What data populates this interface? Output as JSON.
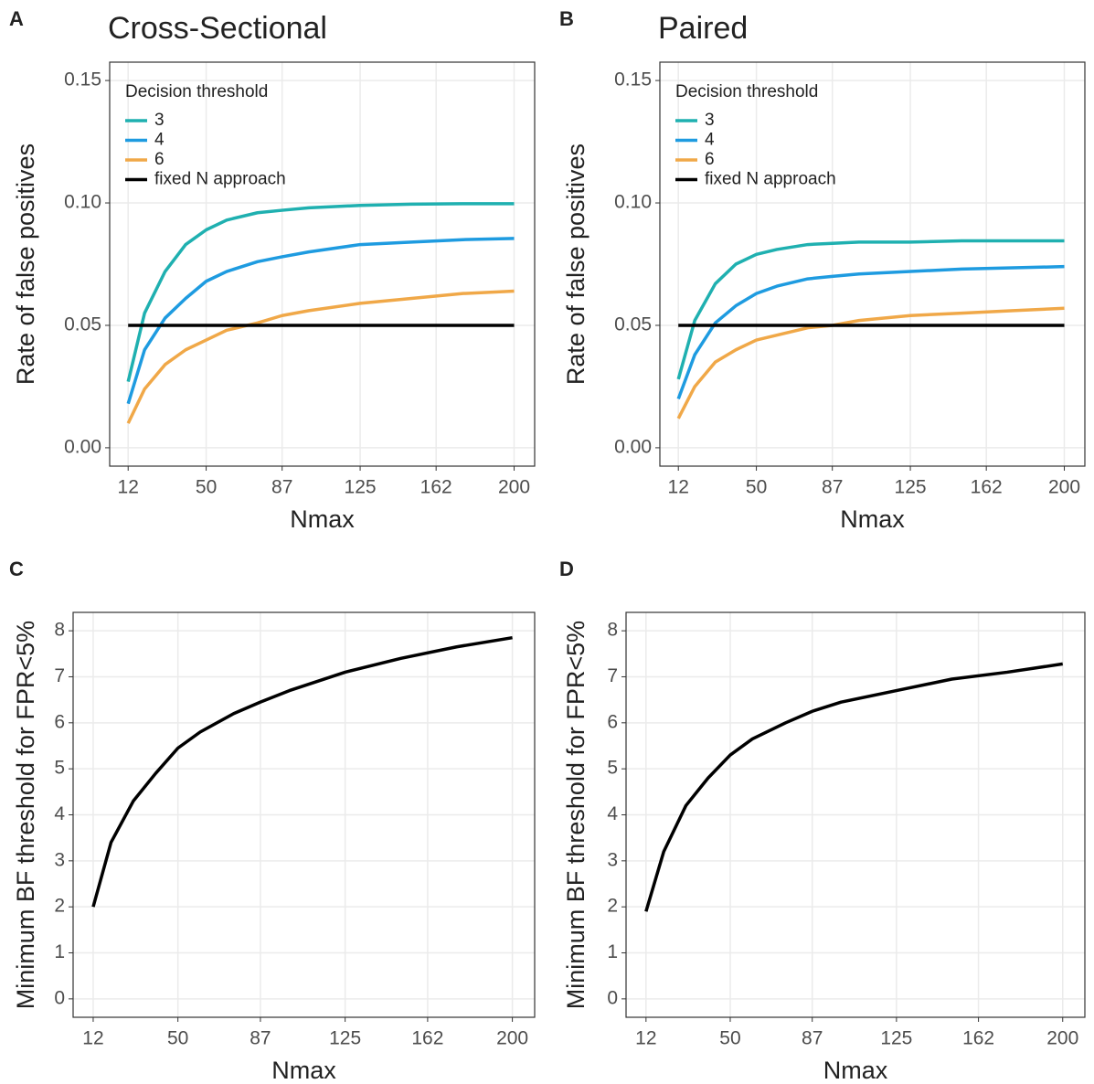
{
  "chart_data": [
    {
      "type": "line",
      "label": "A",
      "title": "Cross-Sectional",
      "xlabel": "Nmax",
      "ylabel": "Rate of false positives",
      "xlim": [
        3,
        210
      ],
      "xticks": [
        12,
        50,
        87,
        125,
        162,
        200
      ],
      "ylim": [
        -0.0075,
        0.1575
      ],
      "yticks": [
        {
          "value": 0,
          "label": "0.00"
        },
        {
          "value": 0.05,
          "label": "0.05"
        },
        {
          "value": 0.1,
          "label": "0.10"
        },
        {
          "value": 0.15,
          "label": "0.15"
        }
      ],
      "grid": true,
      "legend": "top-left",
      "legend_title": "Decision threshold",
      "series": [
        {
          "name": "3",
          "color": "#1fb0b0",
          "x": [
            12,
            20,
            30,
            40,
            50,
            60,
            75,
            87,
            100,
            125,
            150,
            175,
            200
          ],
          "values": [
            0.027,
            0.055,
            0.072,
            0.083,
            0.089,
            0.093,
            0.096,
            0.097,
            0.098,
            0.099,
            0.0995,
            0.0997,
            0.0997
          ]
        },
        {
          "name": "4",
          "color": "#1e9be0",
          "x": [
            12,
            20,
            30,
            40,
            50,
            60,
            75,
            87,
            100,
            125,
            150,
            175,
            200
          ],
          "values": [
            0.018,
            0.04,
            0.053,
            0.061,
            0.068,
            0.072,
            0.076,
            0.078,
            0.08,
            0.083,
            0.084,
            0.085,
            0.0855
          ]
        },
        {
          "name": "6",
          "color": "#f0a848",
          "x": [
            12,
            20,
            30,
            40,
            50,
            60,
            75,
            87,
            100,
            125,
            150,
            175,
            200
          ],
          "values": [
            0.01,
            0.024,
            0.034,
            0.04,
            0.044,
            0.048,
            0.051,
            0.054,
            0.056,
            0.059,
            0.061,
            0.063,
            0.064
          ]
        },
        {
          "name": "fixed N approach",
          "color": "#000000",
          "x": [
            12,
            200
          ],
          "values": [
            0.05,
            0.05
          ]
        }
      ]
    },
    {
      "type": "line",
      "label": "B",
      "title": "Paired",
      "xlabel": "Nmax",
      "ylabel": "Rate of false positives",
      "xlim": [
        3,
        210
      ],
      "xticks": [
        12,
        50,
        87,
        125,
        162,
        200
      ],
      "ylim": [
        -0.0075,
        0.1575
      ],
      "yticks": [
        {
          "value": 0,
          "label": "0.00"
        },
        {
          "value": 0.05,
          "label": "0.05"
        },
        {
          "value": 0.1,
          "label": "0.10"
        },
        {
          "value": 0.15,
          "label": "0.15"
        }
      ],
      "grid": true,
      "legend": "top-left",
      "legend_title": "Decision threshold",
      "series": [
        {
          "name": "3",
          "color": "#1fb0b0",
          "x": [
            12,
            20,
            30,
            40,
            50,
            60,
            75,
            87,
            100,
            125,
            150,
            175,
            200
          ],
          "values": [
            0.028,
            0.052,
            0.067,
            0.075,
            0.079,
            0.081,
            0.083,
            0.0835,
            0.084,
            0.084,
            0.0845,
            0.0845,
            0.0845
          ]
        },
        {
          "name": "4",
          "color": "#1e9be0",
          "x": [
            12,
            20,
            30,
            40,
            50,
            60,
            75,
            87,
            100,
            125,
            150,
            175,
            200
          ],
          "values": [
            0.02,
            0.038,
            0.051,
            0.058,
            0.063,
            0.066,
            0.069,
            0.07,
            0.071,
            0.072,
            0.073,
            0.0735,
            0.074
          ]
        },
        {
          "name": "6",
          "color": "#f0a848",
          "x": [
            12,
            20,
            30,
            40,
            50,
            60,
            75,
            87,
            100,
            125,
            150,
            175,
            200
          ],
          "values": [
            0.012,
            0.025,
            0.035,
            0.04,
            0.044,
            0.046,
            0.049,
            0.05,
            0.052,
            0.054,
            0.055,
            0.056,
            0.057
          ]
        },
        {
          "name": "fixed N approach",
          "color": "#000000",
          "x": [
            12,
            200
          ],
          "values": [
            0.05,
            0.05
          ]
        }
      ]
    },
    {
      "type": "line",
      "label": "C",
      "xlabel": "Nmax",
      "ylabel": "Minimum BF threshold for FPR<5%",
      "xlim": [
        3,
        210
      ],
      "xticks": [
        12,
        50,
        87,
        125,
        162,
        200
      ],
      "ylim": [
        -0.4,
        8.4
      ],
      "yticks": [
        0,
        1,
        2,
        3,
        4,
        5,
        6,
        7,
        8
      ],
      "grid": true,
      "color": "#000000",
      "x": [
        12,
        20,
        30,
        40,
        50,
        60,
        75,
        87,
        100,
        125,
        150,
        175,
        200
      ],
      "values": [
        2.0,
        3.4,
        4.3,
        4.9,
        5.45,
        5.8,
        6.2,
        6.45,
        6.7,
        7.1,
        7.4,
        7.65,
        7.85
      ]
    },
    {
      "type": "line",
      "label": "D",
      "xlabel": "Nmax",
      "ylabel": "Minimum BF threshold for FPR<5%",
      "xlim": [
        3,
        210
      ],
      "xticks": [
        12,
        50,
        87,
        125,
        162,
        200
      ],
      "ylim": [
        -0.4,
        8.4
      ],
      "yticks": [
        0,
        1,
        2,
        3,
        4,
        5,
        6,
        7,
        8
      ],
      "grid": true,
      "color": "#000000",
      "x": [
        12,
        20,
        30,
        40,
        50,
        60,
        75,
        87,
        100,
        125,
        150,
        175,
        200
      ],
      "values": [
        1.9,
        3.2,
        4.2,
        4.8,
        5.3,
        5.65,
        6.0,
        6.25,
        6.45,
        6.7,
        6.95,
        7.1,
        7.28
      ]
    }
  ]
}
